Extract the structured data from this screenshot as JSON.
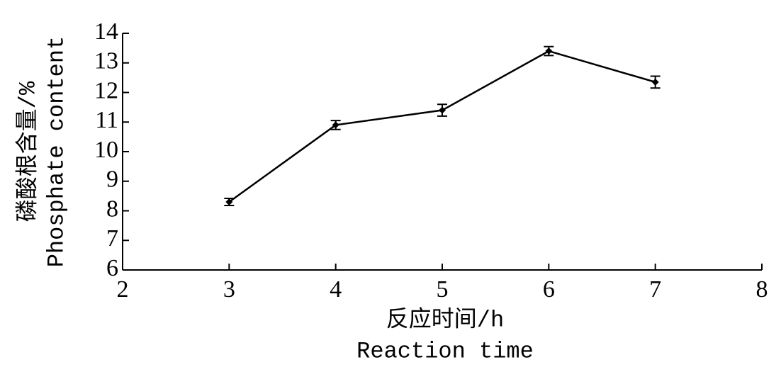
{
  "chart_data": {
    "type": "line",
    "xlabel": [
      "反应时间/h",
      "Reaction time"
    ],
    "ylabel": [
      "磷酸根含量/%",
      "Phosphate content"
    ],
    "x": [
      3,
      4,
      5,
      6,
      7
    ],
    "series": [
      {
        "color": "#000000",
        "values": [
          8.3,
          10.9,
          11.4,
          13.4,
          12.35
        ],
        "errors": [
          0.12,
          0.15,
          0.2,
          0.15,
          0.2
        ]
      }
    ],
    "xlim": [
      2,
      8
    ],
    "xticks": [
      2,
      3,
      4,
      5,
      6,
      7,
      8
    ],
    "ylim": [
      6,
      14
    ],
    "yticks": [
      6,
      7,
      8,
      9,
      10,
      11,
      12,
      13,
      14
    ]
  }
}
